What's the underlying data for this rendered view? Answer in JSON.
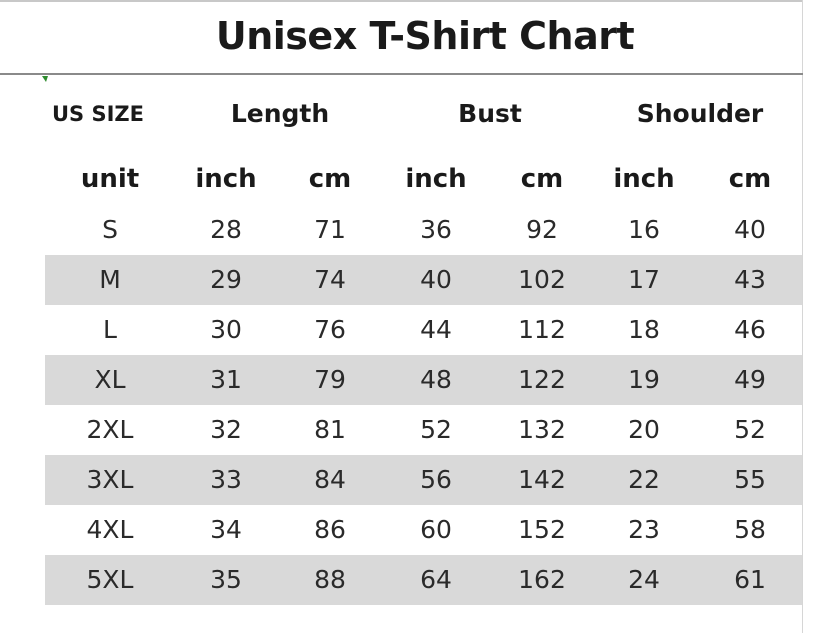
{
  "title": "Unisex T-Shirt Chart",
  "headers": {
    "size": "US SIZE",
    "length": "Length",
    "bust": "Bust",
    "shoulder": "Shoulder"
  },
  "units": {
    "label": "unit",
    "length_inch": "inch",
    "length_cm": "cm",
    "bust_inch": "inch",
    "bust_cm": "cm",
    "shoulder_inch": "inch",
    "shoulder_cm": "cm"
  },
  "colors": {
    "stripe": "#d9d9d9",
    "text": "#2a2a2a"
  },
  "rows": [
    {
      "size": "S",
      "length_inch": "28",
      "length_cm": "71",
      "bust_inch": "36",
      "bust_cm": "92",
      "shoulder_inch": "16",
      "shoulder_cm": "40"
    },
    {
      "size": "M",
      "length_inch": "29",
      "length_cm": "74",
      "bust_inch": "40",
      "bust_cm": "102",
      "shoulder_inch": "17",
      "shoulder_cm": "43"
    },
    {
      "size": "L",
      "length_inch": "30",
      "length_cm": "76",
      "bust_inch": "44",
      "bust_cm": "112",
      "shoulder_inch": "18",
      "shoulder_cm": "46"
    },
    {
      "size": "XL",
      "length_inch": "31",
      "length_cm": "79",
      "bust_inch": "48",
      "bust_cm": "122",
      "shoulder_inch": "19",
      "shoulder_cm": "49"
    },
    {
      "size": "2XL",
      "length_inch": "32",
      "length_cm": "81",
      "bust_inch": "52",
      "bust_cm": "132",
      "shoulder_inch": "20",
      "shoulder_cm": "52"
    },
    {
      "size": "3XL",
      "length_inch": "33",
      "length_cm": "84",
      "bust_inch": "56",
      "bust_cm": "142",
      "shoulder_inch": "22",
      "shoulder_cm": "55"
    },
    {
      "size": "4XL",
      "length_inch": "34",
      "length_cm": "86",
      "bust_inch": "60",
      "bust_cm": "152",
      "shoulder_inch": "23",
      "shoulder_cm": "58"
    },
    {
      "size": "5XL",
      "length_inch": "35",
      "length_cm": "88",
      "bust_inch": "64",
      "bust_cm": "162",
      "shoulder_inch": "24",
      "shoulder_cm": "61"
    }
  ]
}
